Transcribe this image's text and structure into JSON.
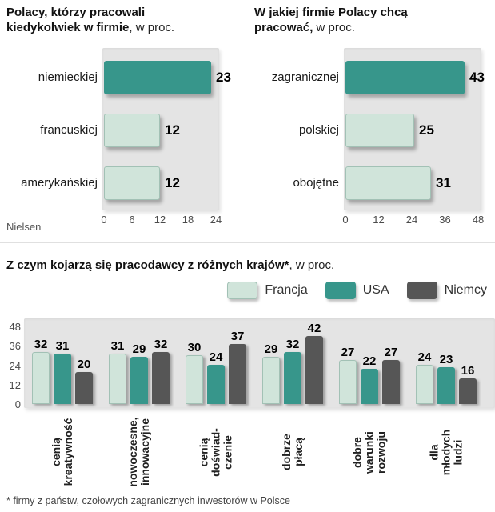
{
  "colors": {
    "highlight": "#37968b",
    "pale": "#d0e4da",
    "pale_border": "#a2c1b5",
    "dark": "#565656",
    "plot_bg": "#e4e4e4"
  },
  "source": "Nielsen",
  "footnote": "* firmy z państw, czołowych zagranicznych inwestorów w Polsce",
  "chart_data": [
    {
      "id": "worked-ever-in-company",
      "type": "bar",
      "orientation": "horizontal",
      "title": "Polacy, którzy pracowali kiedykolwiek w firmie",
      "title_suffix": ", w proc.",
      "categories": [
        "niemieckiej",
        "francuskiej",
        "amerykańskiej"
      ],
      "values": [
        23,
        12,
        12
      ],
      "highlight_index": 0,
      "xlim": [
        0,
        24
      ],
      "xticks": [
        0,
        6,
        12,
        18,
        24
      ],
      "source": "Nielsen"
    },
    {
      "id": "want-to-work-in",
      "type": "bar",
      "orientation": "horizontal",
      "title": "W jakiej firmie Polacy chcą pracować,",
      "title_suffix": " w proc.",
      "categories": [
        "zagranicznej",
        "polskiej",
        "obojętne"
      ],
      "values": [
        43,
        25,
        31
      ],
      "highlight_index": 0,
      "xlim": [
        0,
        48
      ],
      "xticks": [
        0,
        12,
        24,
        36,
        48
      ]
    },
    {
      "id": "employer-associations",
      "type": "bar",
      "orientation": "vertical",
      "title": "Z czym kojarzą się pracodawcy z różnych krajów*",
      "title_suffix": ", w proc.",
      "categories": [
        "cenią\nkreatywność",
        "nowoczesne,\ninnowacyjne",
        "cenią\ndoświad-\nczenie",
        "dobrze\npłacą",
        "dobre\nwarunki\nrozwoju",
        "dla\nmłodych\nludzi"
      ],
      "series": [
        {
          "name": "Francja",
          "color": "#d0e4da",
          "values": [
            32,
            31,
            30,
            29,
            27,
            24
          ]
        },
        {
          "name": "USA",
          "color": "#37968b",
          "values": [
            31,
            29,
            24,
            32,
            22,
            23
          ]
        },
        {
          "name": "Niemcy",
          "color": "#565656",
          "values": [
            20,
            32,
            37,
            42,
            27,
            16
          ]
        }
      ],
      "ylim": [
        0,
        48
      ],
      "yticks": [
        48,
        36,
        24,
        12,
        0
      ],
      "legend": [
        "Francja",
        "USA",
        "Niemcy"
      ],
      "legend_position": "top-right",
      "footnote": "* firmy z państw, czołowych zagranicznych inwestorów w Polsce"
    }
  ]
}
